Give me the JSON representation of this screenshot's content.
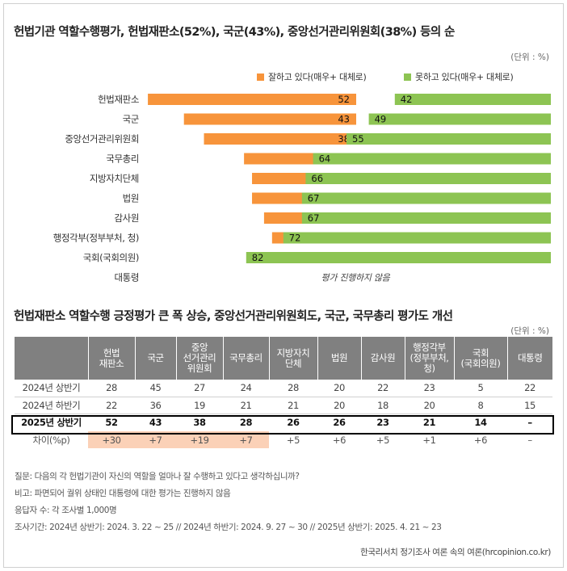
{
  "section1": {
    "title": "헌법기관 역할수행평가, 헌법재판소(52%), 국군(43%), 중앙선거관리위원회(38%) 등의 순",
    "unit": "(단위 : %)"
  },
  "section2": {
    "title": "헌법재판소 역할수행 긍정평가 큰 폭 상승, 중앙선거관리위원회도, 국군, 국무총리 평가도 개선",
    "unit": "(단위 : %)"
  },
  "colors": {
    "positive": "#f7943b",
    "negative": "#8dc453",
    "header": "#808080",
    "highlight": "#fbd1b7"
  },
  "chart_data": {
    "type": "bar",
    "orientation": "horizontal-diverging",
    "categories": [
      "헌법재판소",
      "국군",
      "중앙선거관리위원회",
      "국무총리",
      "지방자치단체",
      "법원",
      "감사원",
      "행정각부(정부부처, 청)",
      "국회(국회의원)",
      "대통령"
    ],
    "series": [
      {
        "name": "잘하고 있다(매우+ 대체로)",
        "values": [
          52,
          43,
          38,
          28,
          26,
          26,
          23,
          21,
          14,
          null
        ]
      },
      {
        "name": "못하고 있다(매우+ 대체로)",
        "values": [
          42,
          49,
          55,
          64,
          66,
          67,
          67,
          72,
          82,
          null
        ]
      }
    ],
    "annotation": "평가 진행하지 않음"
  },
  "table": {
    "headers": [
      "",
      "헌법\n재판소",
      "국군",
      "중앙\n선거관리\n위원회",
      "국무총리",
      "지방자치\n단체",
      "법원",
      "감사원",
      "행정각부\n(정부부처,\n청)",
      "국회\n(국회의원)",
      "대통령"
    ],
    "rows": [
      {
        "label": "2024년 상반기",
        "cells": [
          "28",
          "45",
          "27",
          "24",
          "28",
          "20",
          "22",
          "23",
          "5",
          "22"
        ]
      },
      {
        "label": "2024년 하반기",
        "cells": [
          "22",
          "36",
          "19",
          "21",
          "21",
          "20",
          "18",
          "20",
          "8",
          "15"
        ]
      },
      {
        "label": "2025년 상반기",
        "cells": [
          "52",
          "43",
          "38",
          "28",
          "26",
          "26",
          "23",
          "21",
          "14",
          "–"
        ]
      },
      {
        "label": "차이(%p)",
        "cells": [
          "+30",
          "+7",
          "+19",
          "+7",
          "+5",
          "+6",
          "+5",
          "+1",
          "+6",
          "–"
        ]
      }
    ]
  },
  "notes": {
    "question": "질문:  다음의 각 헌법기관이 자신의 역할을 얼마나 잘 수행하고 있다고 생각하십니까?",
    "remark": "비고:  파면되어 궐위 상태인 대통령에 대한 평가는 진행하지 않음",
    "sample": "응답자 수: 각 조사별 1,000명",
    "period": "조사기간: 2024년 상반기: 2024. 3. 22 ~ 25 // 2024년 하반기: 2024. 9. 27 ~ 30 // 2025년 상반기: 2025. 4. 21 ~ 23",
    "source": "한국리서치 정기조사 여론 속의 여론(hrcopinion.co.kr)"
  }
}
